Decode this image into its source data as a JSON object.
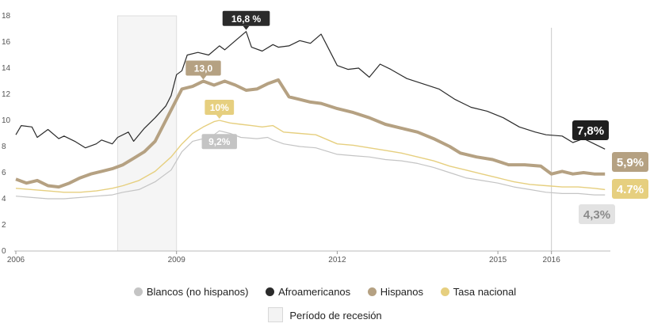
{
  "chart_data": {
    "type": "line",
    "title": "",
    "xlabel": "",
    "ylabel": "",
    "ylim": [
      0,
      18
    ],
    "yticks": [
      0,
      2,
      4,
      6,
      8,
      10,
      12,
      14,
      16,
      18
    ],
    "xlim": [
      2006.0,
      2017.1
    ],
    "xticks": [
      {
        "value": 2006,
        "label": "2006"
      },
      {
        "value": 2009,
        "label": "2009"
      },
      {
        "value": 2012,
        "label": "2012"
      },
      {
        "value": 2015,
        "label": "2015"
      },
      {
        "value": 2016,
        "label": "2016"
      }
    ],
    "grid": false,
    "legend_position": "bottom",
    "recession": {
      "start": 2007.9,
      "end": 2009.0,
      "label": "Período de recesión"
    },
    "reference_line": 2016.0,
    "series": [
      {
        "name": "Blancos (no hispanos)",
        "color": "#c4c4c4",
        "width": 1.2,
        "points": [
          [
            2006.0,
            4.2
          ],
          [
            2006.3,
            4.1
          ],
          [
            2006.6,
            4.0
          ],
          [
            2006.9,
            4.0
          ],
          [
            2007.2,
            4.1
          ],
          [
            2007.5,
            4.2
          ],
          [
            2007.8,
            4.3
          ],
          [
            2008.0,
            4.5
          ],
          [
            2008.3,
            4.7
          ],
          [
            2008.6,
            5.3
          ],
          [
            2008.9,
            6.2
          ],
          [
            2009.1,
            7.6
          ],
          [
            2009.3,
            8.4
          ],
          [
            2009.5,
            8.6
          ],
          [
            2009.7,
            8.9
          ],
          [
            2009.8,
            9.2
          ],
          [
            2010.0,
            9.0
          ],
          [
            2010.2,
            8.7
          ],
          [
            2010.5,
            8.6
          ],
          [
            2010.7,
            8.7
          ],
          [
            2010.8,
            8.5
          ],
          [
            2011.0,
            8.2
          ],
          [
            2011.3,
            8.0
          ],
          [
            2011.6,
            7.9
          ],
          [
            2012.0,
            7.4
          ],
          [
            2012.3,
            7.3
          ],
          [
            2012.6,
            7.2
          ],
          [
            2012.9,
            7.0
          ],
          [
            2013.2,
            6.9
          ],
          [
            2013.5,
            6.7
          ],
          [
            2013.8,
            6.4
          ],
          [
            2014.1,
            6.0
          ],
          [
            2014.4,
            5.6
          ],
          [
            2014.7,
            5.4
          ],
          [
            2015.0,
            5.2
          ],
          [
            2015.3,
            4.9
          ],
          [
            2015.6,
            4.7
          ],
          [
            2015.9,
            4.5
          ],
          [
            2016.2,
            4.4
          ],
          [
            2016.5,
            4.4
          ],
          [
            2016.8,
            4.3
          ],
          [
            2017.0,
            4.3
          ]
        ]
      },
      {
        "name": "Afroamericanos",
        "color": "#2b2b2b",
        "width": 1.2,
        "points": [
          [
            2006.0,
            8.9
          ],
          [
            2006.1,
            9.6
          ],
          [
            2006.3,
            9.5
          ],
          [
            2006.4,
            8.7
          ],
          [
            2006.6,
            9.3
          ],
          [
            2006.8,
            8.6
          ],
          [
            2006.9,
            8.8
          ],
          [
            2007.1,
            8.4
          ],
          [
            2007.3,
            7.9
          ],
          [
            2007.5,
            8.2
          ],
          [
            2007.6,
            8.5
          ],
          [
            2007.8,
            8.2
          ],
          [
            2007.9,
            8.7
          ],
          [
            2008.1,
            9.1
          ],
          [
            2008.2,
            8.4
          ],
          [
            2008.4,
            9.4
          ],
          [
            2008.6,
            10.2
          ],
          [
            2008.8,
            11.1
          ],
          [
            2008.9,
            11.9
          ],
          [
            2009.0,
            13.5
          ],
          [
            2009.1,
            13.8
          ],
          [
            2009.2,
            15.0
          ],
          [
            2009.4,
            15.2
          ],
          [
            2009.6,
            15.0
          ],
          [
            2009.8,
            15.7
          ],
          [
            2009.9,
            15.4
          ],
          [
            2010.1,
            16.1
          ],
          [
            2010.3,
            16.8
          ],
          [
            2010.4,
            15.6
          ],
          [
            2010.6,
            15.3
          ],
          [
            2010.8,
            15.8
          ],
          [
            2010.9,
            15.6
          ],
          [
            2011.1,
            15.7
          ],
          [
            2011.3,
            16.1
          ],
          [
            2011.5,
            15.9
          ],
          [
            2011.7,
            16.6
          ],
          [
            2011.8,
            15.8
          ],
          [
            2012.0,
            14.2
          ],
          [
            2012.2,
            13.9
          ],
          [
            2012.4,
            14.0
          ],
          [
            2012.6,
            13.3
          ],
          [
            2012.8,
            14.3
          ],
          [
            2013.0,
            13.9
          ],
          [
            2013.3,
            13.2
          ],
          [
            2013.6,
            12.8
          ],
          [
            2013.9,
            12.4
          ],
          [
            2014.2,
            11.6
          ],
          [
            2014.5,
            11.0
          ],
          [
            2014.8,
            10.7
          ],
          [
            2015.1,
            10.2
          ],
          [
            2015.4,
            9.5
          ],
          [
            2015.7,
            9.1
          ],
          [
            2015.9,
            8.9
          ],
          [
            2016.2,
            8.8
          ],
          [
            2016.4,
            8.3
          ],
          [
            2016.6,
            8.6
          ],
          [
            2016.8,
            8.2
          ],
          [
            2017.0,
            7.8
          ]
        ]
      },
      {
        "name": "Hispanos",
        "color": "#b5a182",
        "width": 4,
        "points": [
          [
            2006.0,
            5.5
          ],
          [
            2006.2,
            5.2
          ],
          [
            2006.4,
            5.4
          ],
          [
            2006.6,
            5.0
          ],
          [
            2006.8,
            4.9
          ],
          [
            2007.0,
            5.2
          ],
          [
            2007.2,
            5.6
          ],
          [
            2007.4,
            5.9
          ],
          [
            2007.6,
            6.1
          ],
          [
            2007.8,
            6.3
          ],
          [
            2008.0,
            6.6
          ],
          [
            2008.2,
            7.1
          ],
          [
            2008.4,
            7.6
          ],
          [
            2008.6,
            8.4
          ],
          [
            2008.8,
            10.0
          ],
          [
            2009.0,
            11.6
          ],
          [
            2009.1,
            12.4
          ],
          [
            2009.3,
            12.6
          ],
          [
            2009.5,
            13.0
          ],
          [
            2009.7,
            12.7
          ],
          [
            2009.9,
            13.0
          ],
          [
            2010.1,
            12.7
          ],
          [
            2010.3,
            12.3
          ],
          [
            2010.5,
            12.4
          ],
          [
            2010.7,
            12.8
          ],
          [
            2010.9,
            13.1
          ],
          [
            2011.1,
            11.8
          ],
          [
            2011.3,
            11.6
          ],
          [
            2011.5,
            11.4
          ],
          [
            2011.7,
            11.3
          ],
          [
            2012.0,
            10.9
          ],
          [
            2012.3,
            10.6
          ],
          [
            2012.6,
            10.2
          ],
          [
            2012.9,
            9.7
          ],
          [
            2013.2,
            9.4
          ],
          [
            2013.5,
            9.1
          ],
          [
            2013.8,
            8.6
          ],
          [
            2014.1,
            8.0
          ],
          [
            2014.3,
            7.5
          ],
          [
            2014.6,
            7.2
          ],
          [
            2014.9,
            7.0
          ],
          [
            2015.2,
            6.6
          ],
          [
            2015.5,
            6.6
          ],
          [
            2015.8,
            6.5
          ],
          [
            2016.0,
            5.9
          ],
          [
            2016.2,
            6.1
          ],
          [
            2016.4,
            5.9
          ],
          [
            2016.6,
            6.0
          ],
          [
            2016.8,
            5.9
          ],
          [
            2017.0,
            5.9
          ]
        ]
      },
      {
        "name": "Tasa nacional",
        "color": "#e6cf7f",
        "width": 1.4,
        "points": [
          [
            2006.0,
            4.8
          ],
          [
            2006.3,
            4.7
          ],
          [
            2006.6,
            4.6
          ],
          [
            2006.9,
            4.5
          ],
          [
            2007.2,
            4.5
          ],
          [
            2007.5,
            4.6
          ],
          [
            2007.8,
            4.8
          ],
          [
            2008.0,
            5.0
          ],
          [
            2008.3,
            5.4
          ],
          [
            2008.6,
            6.1
          ],
          [
            2008.9,
            7.2
          ],
          [
            2009.1,
            8.2
          ],
          [
            2009.3,
            9.0
          ],
          [
            2009.5,
            9.5
          ],
          [
            2009.7,
            9.9
          ],
          [
            2009.8,
            10.0
          ],
          [
            2010.0,
            9.8
          ],
          [
            2010.2,
            9.7
          ],
          [
            2010.4,
            9.6
          ],
          [
            2010.6,
            9.5
          ],
          [
            2010.8,
            9.6
          ],
          [
            2011.0,
            9.1
          ],
          [
            2011.3,
            9.0
          ],
          [
            2011.6,
            8.9
          ],
          [
            2012.0,
            8.2
          ],
          [
            2012.3,
            8.1
          ],
          [
            2012.6,
            7.9
          ],
          [
            2012.9,
            7.7
          ],
          [
            2013.2,
            7.5
          ],
          [
            2013.5,
            7.2
          ],
          [
            2013.8,
            6.9
          ],
          [
            2014.1,
            6.5
          ],
          [
            2014.4,
            6.2
          ],
          [
            2014.7,
            5.9
          ],
          [
            2015.0,
            5.6
          ],
          [
            2015.3,
            5.3
          ],
          [
            2015.6,
            5.1
          ],
          [
            2015.9,
            5.0
          ],
          [
            2016.2,
            4.9
          ],
          [
            2016.5,
            4.9
          ],
          [
            2016.8,
            4.8
          ],
          [
            2017.0,
            4.7
          ]
        ]
      }
    ],
    "annotations": [
      {
        "text": "16,8 %",
        "x": 2010.3,
        "y": 16.8,
        "series": "Afroamericanos",
        "bg": "#2b2b2b",
        "fg": "#ffffff"
      },
      {
        "text": "13,0",
        "x": 2009.5,
        "y": 13.0,
        "series": "Hispanos",
        "bg": "#b5a182",
        "fg": "#ffffff"
      },
      {
        "text": "10%",
        "x": 2009.8,
        "y": 10.0,
        "series": "Tasa nacional",
        "bg": "#e6cf7f",
        "fg": "#ffffff"
      },
      {
        "text": "9,2%",
        "x": 2009.8,
        "y": 9.2,
        "series": "Blancos (no hispanos)",
        "bg": "#c4c4c4",
        "fg": "#ffffff"
      }
    ],
    "end_labels": [
      {
        "text": "7,8%",
        "series": "Afroamericanos",
        "value": 7.8,
        "bg": "#1f1f1f",
        "fg": "#ffffff"
      },
      {
        "text": "5,9%",
        "series": "Hispanos",
        "value": 5.9,
        "bg": "#b5a182",
        "fg": "#ffffff"
      },
      {
        "text": "4.7%",
        "series": "Tasa nacional",
        "value": 4.7,
        "bg": "#e6cf7f",
        "fg": "#ffffff"
      },
      {
        "text": "4,3%",
        "series": "Blancos (no hispanos)",
        "value": 4.3,
        "bg": "#e2e2e2",
        "fg": "#8a8a8a"
      }
    ]
  },
  "legend": {
    "items": [
      {
        "label": "Blancos (no hispanos)",
        "color": "#c4c4c4"
      },
      {
        "label": "Afroamericanos",
        "color": "#2b2b2b"
      },
      {
        "label": "Hispanos",
        "color": "#b5a182"
      },
      {
        "label": "Tasa nacional",
        "color": "#e6cf7f"
      }
    ],
    "recession_label": "Período de recesión"
  }
}
